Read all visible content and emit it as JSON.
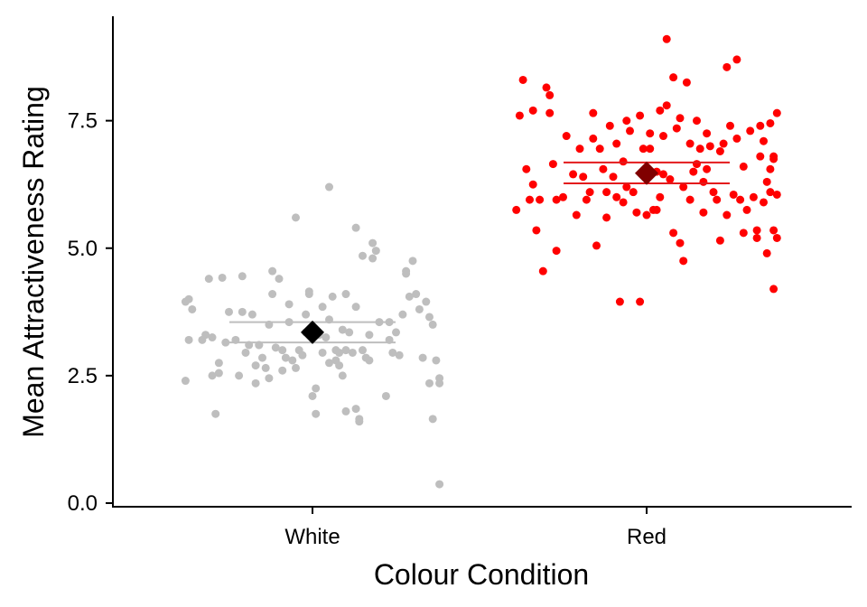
{
  "chart_data": {
    "type": "scatter",
    "subtype": "jittered strip plot with mean and 95% confidence interval",
    "title": "",
    "xlabel": "Colour Condition",
    "ylabel": "Mean Attractiveness Rating",
    "categories": [
      "White",
      "Red"
    ],
    "ylim": [
      -0.1,
      9.35
    ],
    "yticks": [
      0.0,
      2.5,
      5.0,
      7.5
    ],
    "ytick_labels": [
      "0.0",
      "2.5",
      "5.0",
      "7.5"
    ],
    "grid": false,
    "legend": "none",
    "groups": [
      {
        "category": "White",
        "point_color": "#bebebe",
        "mean_color": "#000000",
        "ci_color": "#bebebe",
        "mean": 3.35,
        "ci_low": 3.15,
        "ci_high": 3.55,
        "points": [
          [
            -0.38,
            3.95
          ],
          [
            -0.37,
            4.0
          ],
          [
            -0.36,
            3.8
          ],
          [
            -0.38,
            2.4
          ],
          [
            -0.37,
            3.2
          ],
          [
            -0.33,
            3.2
          ],
          [
            -0.32,
            3.3
          ],
          [
            -0.31,
            4.4
          ],
          [
            -0.3,
            3.25
          ],
          [
            -0.3,
            2.5
          ],
          [
            -0.29,
            1.75
          ],
          [
            -0.28,
            2.75
          ],
          [
            -0.28,
            2.55
          ],
          [
            -0.27,
            4.42
          ],
          [
            -0.26,
            3.15
          ],
          [
            -0.25,
            3.75
          ],
          [
            -0.23,
            3.2
          ],
          [
            -0.22,
            2.5
          ],
          [
            -0.21,
            4.45
          ],
          [
            -0.21,
            3.75
          ],
          [
            -0.2,
            2.95
          ],
          [
            -0.19,
            3.1
          ],
          [
            -0.18,
            3.7
          ],
          [
            -0.17,
            2.7
          ],
          [
            -0.17,
            2.35
          ],
          [
            -0.16,
            3.1
          ],
          [
            -0.16,
            3.1
          ],
          [
            -0.15,
            2.85
          ],
          [
            -0.14,
            2.65
          ],
          [
            -0.13,
            2.45
          ],
          [
            -0.13,
            3.5
          ],
          [
            -0.12,
            4.55
          ],
          [
            -0.12,
            4.1
          ],
          [
            -0.11,
            3.05
          ],
          [
            -0.1,
            4.4
          ],
          [
            -0.09,
            3.0
          ],
          [
            -0.09,
            2.6
          ],
          [
            -0.08,
            2.85
          ],
          [
            -0.07,
            3.55
          ],
          [
            -0.07,
            3.9
          ],
          [
            -0.06,
            2.8
          ],
          [
            -0.05,
            2.65
          ],
          [
            -0.05,
            5.6
          ],
          [
            -0.04,
            3.0
          ],
          [
            -0.03,
            2.9
          ],
          [
            -0.02,
            3.7
          ],
          [
            -0.02,
            3.35
          ],
          [
            -0.01,
            4.1
          ],
          [
            -0.01,
            4.15
          ],
          [
            0.0,
            2.1
          ],
          [
            0.01,
            2.25
          ],
          [
            0.01,
            1.75
          ],
          [
            0.02,
            3.3
          ],
          [
            0.03,
            3.85
          ],
          [
            0.03,
            2.95
          ],
          [
            0.04,
            3.25
          ],
          [
            0.05,
            2.75
          ],
          [
            0.05,
            3.6
          ],
          [
            0.05,
            6.2
          ],
          [
            0.06,
            4.05
          ],
          [
            0.07,
            3.0
          ],
          [
            0.07,
            2.8
          ],
          [
            0.08,
            2.95
          ],
          [
            0.08,
            2.7
          ],
          [
            0.09,
            2.5
          ],
          [
            0.09,
            3.4
          ],
          [
            0.1,
            3.0
          ],
          [
            0.1,
            1.8
          ],
          [
            0.1,
            4.1
          ],
          [
            0.11,
            3.35
          ],
          [
            0.12,
            2.95
          ],
          [
            0.13,
            1.85
          ],
          [
            0.13,
            5.4
          ],
          [
            0.13,
            3.85
          ],
          [
            0.14,
            1.65
          ],
          [
            0.14,
            1.6
          ],
          [
            0.15,
            4.85
          ],
          [
            0.15,
            3.0
          ],
          [
            0.16,
            2.85
          ],
          [
            0.17,
            2.8
          ],
          [
            0.17,
            3.3
          ],
          [
            0.18,
            5.1
          ],
          [
            0.18,
            4.8
          ],
          [
            0.19,
            4.95
          ],
          [
            0.2,
            3.55
          ],
          [
            0.22,
            2.1
          ],
          [
            0.23,
            3.2
          ],
          [
            0.23,
            3.55
          ],
          [
            0.24,
            2.95
          ],
          [
            0.25,
            3.35
          ],
          [
            0.26,
            2.9
          ],
          [
            0.27,
            3.7
          ],
          [
            0.28,
            4.55
          ],
          [
            0.28,
            4.5
          ],
          [
            0.29,
            4.05
          ],
          [
            0.3,
            4.75
          ],
          [
            0.31,
            4.1
          ],
          [
            0.32,
            3.8
          ],
          [
            0.33,
            2.85
          ],
          [
            0.34,
            3.95
          ],
          [
            0.35,
            3.65
          ],
          [
            0.35,
            2.35
          ],
          [
            0.36,
            3.5
          ],
          [
            0.36,
            1.65
          ],
          [
            0.37,
            2.8
          ],
          [
            0.38,
            2.45
          ],
          [
            0.38,
            2.35
          ],
          [
            0.38,
            0.37
          ]
        ]
      },
      {
        "category": "Red",
        "point_color": "#ff0000",
        "mean_color": "#800000",
        "ci_color": "#e31a1c",
        "mean": 6.47,
        "ci_low": 6.27,
        "ci_high": 6.68,
        "points": [
          [
            -0.39,
            5.75
          ],
          [
            -0.38,
            7.6
          ],
          [
            -0.37,
            8.3
          ],
          [
            -0.36,
            6.55
          ],
          [
            -0.35,
            5.95
          ],
          [
            -0.34,
            7.7
          ],
          [
            -0.34,
            6.25
          ],
          [
            -0.33,
            5.35
          ],
          [
            -0.32,
            5.95
          ],
          [
            -0.31,
            4.55
          ],
          [
            -0.3,
            8.15
          ],
          [
            -0.29,
            8.0
          ],
          [
            -0.29,
            7.65
          ],
          [
            -0.28,
            6.65
          ],
          [
            -0.27,
            5.95
          ],
          [
            -0.27,
            4.95
          ],
          [
            -0.25,
            6.0
          ],
          [
            -0.24,
            7.2
          ],
          [
            -0.22,
            6.45
          ],
          [
            -0.21,
            5.65
          ],
          [
            -0.2,
            6.95
          ],
          [
            -0.19,
            6.4
          ],
          [
            -0.18,
            5.95
          ],
          [
            -0.17,
            6.1
          ],
          [
            -0.16,
            7.65
          ],
          [
            -0.16,
            7.15
          ],
          [
            -0.15,
            5.05
          ],
          [
            -0.14,
            6.95
          ],
          [
            -0.13,
            6.55
          ],
          [
            -0.12,
            6.1
          ],
          [
            -0.12,
            5.6
          ],
          [
            -0.11,
            7.4
          ],
          [
            -0.1,
            6.4
          ],
          [
            -0.09,
            7.05
          ],
          [
            -0.09,
            6.0
          ],
          [
            -0.08,
            3.95
          ],
          [
            -0.07,
            6.7
          ],
          [
            -0.07,
            5.9
          ],
          [
            -0.06,
            6.2
          ],
          [
            -0.06,
            7.5
          ],
          [
            -0.05,
            7.3
          ],
          [
            -0.04,
            6.1
          ],
          [
            -0.03,
            5.7
          ],
          [
            -0.02,
            3.95
          ],
          [
            -0.02,
            7.6
          ],
          [
            -0.01,
            6.95
          ],
          [
            0.0,
            5.65
          ],
          [
            0.01,
            7.25
          ],
          [
            0.01,
            6.95
          ],
          [
            0.02,
            5.75
          ],
          [
            0.03,
            6.5
          ],
          [
            0.03,
            5.75
          ],
          [
            0.04,
            7.7
          ],
          [
            0.04,
            6.0
          ],
          [
            0.05,
            7.2
          ],
          [
            0.05,
            6.45
          ],
          [
            0.06,
            7.8
          ],
          [
            0.06,
            9.1
          ],
          [
            0.07,
            6.35
          ],
          [
            0.08,
            5.3
          ],
          [
            0.08,
            8.35
          ],
          [
            0.09,
            7.35
          ],
          [
            0.1,
            7.55
          ],
          [
            0.1,
            5.1
          ],
          [
            0.11,
            6.2
          ],
          [
            0.11,
            4.75
          ],
          [
            0.12,
            8.25
          ],
          [
            0.13,
            7.05
          ],
          [
            0.13,
            5.95
          ],
          [
            0.14,
            6.5
          ],
          [
            0.15,
            6.65
          ],
          [
            0.15,
            7.5
          ],
          [
            0.16,
            6.95
          ],
          [
            0.17,
            5.7
          ],
          [
            0.17,
            6.3
          ],
          [
            0.18,
            7.25
          ],
          [
            0.18,
            6.55
          ],
          [
            0.19,
            7.0
          ],
          [
            0.2,
            6.1
          ],
          [
            0.21,
            5.95
          ],
          [
            0.22,
            6.9
          ],
          [
            0.22,
            5.15
          ],
          [
            0.23,
            7.05
          ],
          [
            0.24,
            8.55
          ],
          [
            0.24,
            5.65
          ],
          [
            0.25,
            7.4
          ],
          [
            0.26,
            6.05
          ],
          [
            0.27,
            8.7
          ],
          [
            0.27,
            7.15
          ],
          [
            0.28,
            5.95
          ],
          [
            0.29,
            5.3
          ],
          [
            0.29,
            6.6
          ],
          [
            0.3,
            5.75
          ],
          [
            0.31,
            7.3
          ],
          [
            0.32,
            6.0
          ],
          [
            0.33,
            5.35
          ],
          [
            0.33,
            5.2
          ],
          [
            0.34,
            7.4
          ],
          [
            0.34,
            6.8
          ],
          [
            0.35,
            5.9
          ],
          [
            0.35,
            7.1
          ],
          [
            0.36,
            6.3
          ],
          [
            0.36,
            4.9
          ],
          [
            0.37,
            7.45
          ],
          [
            0.37,
            6.55
          ],
          [
            0.38,
            6.8
          ],
          [
            0.38,
            5.35
          ],
          [
            0.38,
            4.2
          ],
          [
            0.39,
            7.65
          ],
          [
            0.39,
            6.05
          ],
          [
            0.39,
            5.2
          ],
          [
            0.38,
            6.75
          ],
          [
            0.37,
            6.1
          ]
        ]
      }
    ]
  }
}
